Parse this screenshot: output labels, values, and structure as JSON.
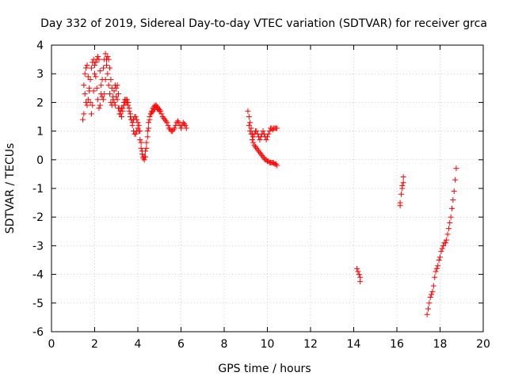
{
  "chart_data": {
    "type": "scatter",
    "title": "Day 332 of 2019, Sidereal Day-to-day VTEC variation (SDTVAR) for receiver grca",
    "xlabel": "GPS time / hours",
    "ylabel": "SDTVAR / TECUs",
    "xlim": [
      0,
      20
    ],
    "ylim": [
      -6,
      4
    ],
    "xticks": [
      0,
      2,
      4,
      6,
      8,
      10,
      12,
      14,
      16,
      18,
      20
    ],
    "yticks": [
      4,
      3,
      2,
      1,
      0,
      -1,
      -2,
      -3,
      -4,
      -5,
      -6
    ],
    "grid": true,
    "marker": "+",
    "color": "#ff0000",
    "series": [
      {
        "name": "SDTVAR",
        "points": [
          [
            1.45,
            1.4
          ],
          [
            1.5,
            1.6
          ],
          [
            1.55,
            3.0
          ],
          [
            1.6,
            3.2
          ],
          [
            1.65,
            3.3
          ],
          [
            1.7,
            2.9
          ],
          [
            1.75,
            2.5
          ],
          [
            1.8,
            2.0
          ],
          [
            1.85,
            1.6
          ],
          [
            1.9,
            1.9
          ],
          [
            1.95,
            2.4
          ],
          [
            2.0,
            3.0
          ],
          [
            2.05,
            3.4
          ],
          [
            2.1,
            3.5
          ],
          [
            2.15,
            3.6
          ],
          [
            2.2,
            3.5
          ],
          [
            2.25,
            3.1
          ],
          [
            2.3,
            2.6
          ],
          [
            2.35,
            2.2
          ],
          [
            2.4,
            2.1
          ],
          [
            2.45,
            2.3
          ],
          [
            2.5,
            2.8
          ],
          [
            2.55,
            3.3
          ],
          [
            2.6,
            3.6
          ],
          [
            2.65,
            3.5
          ],
          [
            2.7,
            3.2
          ],
          [
            2.75,
            2.8
          ],
          [
            2.8,
            2.5
          ],
          [
            2.85,
            2.2
          ],
          [
            2.9,
            2.0
          ],
          [
            2.95,
            1.9
          ],
          [
            3.0,
            2.2
          ],
          [
            3.05,
            2.6
          ],
          [
            3.1,
            2.3
          ],
          [
            3.15,
            1.8
          ],
          [
            3.2,
            1.6
          ],
          [
            3.25,
            1.5
          ],
          [
            3.3,
            1.7
          ],
          [
            3.35,
            2.0
          ],
          [
            3.4,
            2.1
          ],
          [
            3.45,
            2.1
          ],
          [
            3.5,
            2.0
          ],
          [
            3.55,
            1.9
          ],
          [
            3.6,
            1.7
          ],
          [
            3.65,
            1.5
          ],
          [
            3.7,
            1.4
          ],
          [
            3.75,
            1.3
          ],
          [
            3.8,
            1.4
          ],
          [
            3.85,
            1.5
          ],
          [
            3.9,
            1.5
          ],
          [
            3.95,
            1.4
          ],
          [
            4.0,
            1.3
          ],
          [
            4.05,
            1.2
          ],
          [
            4.1,
            1.0
          ],
          [
            4.15,
            0.6
          ],
          [
            4.2,
            0.3
          ],
          [
            4.25,
            0.1
          ],
          [
            4.3,
            0.0
          ],
          [
            4.35,
            0.1
          ],
          [
            4.4,
            0.4
          ],
          [
            4.45,
            0.8
          ],
          [
            4.5,
            1.1
          ],
          [
            4.55,
            1.4
          ],
          [
            4.6,
            1.6
          ],
          [
            4.65,
            1.7
          ],
          [
            4.7,
            1.8
          ],
          [
            4.75,
            1.85
          ],
          [
            4.8,
            1.9
          ],
          [
            4.85,
            1.9
          ],
          [
            4.9,
            1.85
          ],
          [
            4.95,
            1.8
          ],
          [
            5.0,
            1.75
          ],
          [
            5.05,
            1.7
          ],
          [
            5.1,
            1.6
          ],
          [
            5.15,
            1.5
          ],
          [
            5.2,
            1.45
          ],
          [
            5.25,
            1.4
          ],
          [
            5.3,
            1.35
          ],
          [
            5.35,
            1.3
          ],
          [
            5.4,
            1.2
          ],
          [
            5.45,
            1.1
          ],
          [
            5.5,
            1.05
          ],
          [
            5.55,
            1.0
          ],
          [
            5.6,
            1.0
          ],
          [
            5.65,
            1.05
          ],
          [
            5.7,
            1.1
          ],
          [
            5.75,
            1.2
          ],
          [
            5.8,
            1.3
          ],
          [
            5.85,
            1.35
          ],
          [
            5.9,
            1.3
          ],
          [
            5.95,
            1.2
          ],
          [
            6.0,
            1.1
          ],
          [
            1.5,
            2.6
          ],
          [
            1.55,
            2.3
          ],
          [
            1.6,
            2.0
          ],
          [
            1.65,
            1.9
          ],
          [
            1.7,
            2.1
          ],
          [
            1.75,
            2.4
          ],
          [
            1.8,
            2.8
          ],
          [
            1.85,
            3.2
          ],
          [
            1.9,
            3.4
          ],
          [
            1.95,
            3.5
          ],
          [
            2.0,
            3.3
          ],
          [
            2.05,
            2.9
          ],
          [
            2.1,
            2.5
          ],
          [
            2.15,
            2.1
          ],
          [
            2.2,
            1.8
          ],
          [
            2.25,
            1.9
          ],
          [
            2.3,
            2.3
          ],
          [
            2.35,
            2.8
          ],
          [
            2.4,
            3.2
          ],
          [
            2.45,
            3.5
          ],
          [
            2.5,
            3.7
          ],
          [
            2.55,
            3.5
          ],
          [
            2.6,
            3.0
          ],
          [
            2.65,
            2.6
          ],
          [
            2.7,
            2.3
          ],
          [
            2.75,
            2.0
          ],
          [
            2.8,
            1.9
          ],
          [
            2.85,
            2.1
          ],
          [
            2.9,
            2.4
          ],
          [
            2.95,
            2.6
          ],
          [
            3.0,
            2.5
          ],
          [
            3.05,
            2.1
          ],
          [
            3.1,
            1.8
          ],
          [
            3.15,
            1.6
          ],
          [
            3.2,
            1.7
          ],
          [
            3.25,
            1.8
          ],
          [
            3.3,
            1.8
          ],
          [
            3.35,
            1.9
          ],
          [
            3.4,
            2.0
          ],
          [
            3.45,
            2.0
          ],
          [
            3.5,
            2.1
          ],
          [
            3.55,
            2.0
          ],
          [
            3.6,
            1.8
          ],
          [
            3.65,
            1.6
          ],
          [
            3.7,
            1.4
          ],
          [
            3.75,
            1.2
          ],
          [
            3.8,
            1.0
          ],
          [
            3.85,
            0.9
          ],
          [
            3.9,
            0.9
          ],
          [
            3.95,
            1.0
          ],
          [
            4.0,
            1.1
          ],
          [
            4.05,
            1.0
          ],
          [
            4.1,
            0.7
          ],
          [
            4.15,
            0.4
          ],
          [
            4.2,
            0.2
          ],
          [
            4.25,
            0.05
          ],
          [
            4.3,
            0.1
          ],
          [
            4.35,
            0.3
          ],
          [
            4.4,
            0.6
          ],
          [
            4.45,
            1.0
          ],
          [
            4.5,
            1.3
          ],
          [
            4.55,
            1.5
          ],
          [
            4.6,
            1.6
          ],
          [
            4.65,
            1.65
          ],
          [
            4.7,
            1.7
          ],
          [
            4.75,
            1.75
          ],
          [
            4.8,
            1.8
          ],
          [
            4.85,
            1.85
          ],
          [
            4.9,
            1.8
          ],
          [
            4.95,
            1.75
          ],
          [
            5.0,
            1.7
          ],
          [
            6.05,
            1.2
          ],
          [
            6.1,
            1.3
          ],
          [
            6.15,
            1.25
          ],
          [
            6.2,
            1.2
          ],
          [
            6.25,
            1.1
          ],
          [
            9.1,
            1.7
          ],
          [
            9.15,
            1.5
          ],
          [
            9.2,
            1.3
          ],
          [
            9.25,
            1.1
          ],
          [
            9.3,
            0.9
          ],
          [
            9.35,
            0.8
          ],
          [
            9.4,
            0.9
          ],
          [
            9.45,
            1.0
          ],
          [
            9.5,
            1.0
          ],
          [
            9.55,
            0.9
          ],
          [
            9.6,
            0.8
          ],
          [
            9.65,
            0.7
          ],
          [
            9.7,
            0.8
          ],
          [
            9.75,
            0.9
          ],
          [
            9.8,
            1.0
          ],
          [
            9.85,
            0.9
          ],
          [
            9.9,
            0.8
          ],
          [
            9.95,
            0.7
          ],
          [
            10.0,
            0.8
          ],
          [
            10.05,
            0.9
          ],
          [
            10.1,
            1.0
          ],
          [
            10.15,
            1.1
          ],
          [
            10.2,
            1.1
          ],
          [
            10.25,
            1.05
          ],
          [
            10.3,
            1.1
          ],
          [
            10.35,
            1.1
          ],
          [
            10.4,
            1.1
          ],
          [
            10.45,
            1.1
          ],
          [
            9.15,
            1.2
          ],
          [
            9.2,
            1.0
          ],
          [
            9.25,
            0.9
          ],
          [
            9.3,
            0.7
          ],
          [
            9.35,
            0.6
          ],
          [
            9.4,
            0.5
          ],
          [
            9.45,
            0.45
          ],
          [
            9.5,
            0.4
          ],
          [
            9.55,
            0.35
          ],
          [
            9.6,
            0.3
          ],
          [
            9.65,
            0.25
          ],
          [
            9.7,
            0.2
          ],
          [
            9.75,
            0.15
          ],
          [
            9.8,
            0.1
          ],
          [
            9.85,
            0.05
          ],
          [
            9.9,
            0.0
          ],
          [
            9.95,
            0.0
          ],
          [
            10.0,
            -0.05
          ],
          [
            10.05,
            -0.05
          ],
          [
            10.1,
            -0.1
          ],
          [
            10.15,
            -0.1
          ],
          [
            10.2,
            -0.1
          ],
          [
            10.25,
            -0.1
          ],
          [
            10.3,
            -0.12
          ],
          [
            10.35,
            -0.15
          ],
          [
            10.4,
            -0.15
          ],
          [
            10.45,
            -0.2
          ],
          [
            14.15,
            -3.8
          ],
          [
            14.2,
            -3.9
          ],
          [
            14.25,
            -4.0
          ],
          [
            14.3,
            -4.1
          ],
          [
            14.3,
            -4.25
          ],
          [
            16.15,
            -1.5
          ],
          [
            16.15,
            -1.6
          ],
          [
            16.2,
            -1.2
          ],
          [
            16.25,
            -1.0
          ],
          [
            16.25,
            -0.9
          ],
          [
            16.3,
            -0.8
          ],
          [
            16.3,
            -0.6
          ],
          [
            17.4,
            -5.4
          ],
          [
            17.45,
            -5.2
          ],
          [
            17.5,
            -5.0
          ],
          [
            17.55,
            -4.8
          ],
          [
            17.6,
            -4.7
          ],
          [
            17.65,
            -4.6
          ],
          [
            17.7,
            -4.4
          ],
          [
            17.75,
            -4.1
          ],
          [
            17.8,
            -3.9
          ],
          [
            17.85,
            -3.8
          ],
          [
            17.9,
            -3.7
          ],
          [
            17.95,
            -3.5
          ],
          [
            18.0,
            -3.4
          ],
          [
            18.05,
            -3.2
          ],
          [
            18.1,
            -3.1
          ],
          [
            18.15,
            -3.0
          ],
          [
            18.2,
            -2.9
          ],
          [
            18.25,
            -2.9
          ],
          [
            18.3,
            -2.8
          ],
          [
            18.35,
            -2.6
          ],
          [
            18.4,
            -2.4
          ],
          [
            18.45,
            -2.2
          ],
          [
            18.5,
            -2.0
          ],
          [
            18.55,
            -1.7
          ],
          [
            18.6,
            -1.4
          ],
          [
            18.65,
            -1.1
          ],
          [
            18.7,
            -0.7
          ],
          [
            18.75,
            -0.3
          ]
        ]
      }
    ]
  }
}
